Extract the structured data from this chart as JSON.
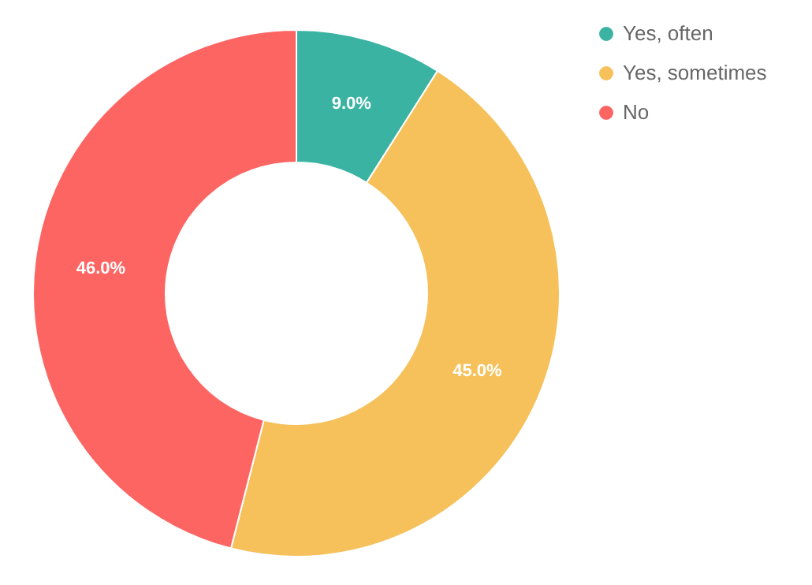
{
  "chart_data": {
    "type": "donut",
    "categories": [
      "Yes, often",
      "Yes, sometimes",
      "No"
    ],
    "values": [
      9,
      45,
      46
    ],
    "colors": [
      "#3bb3a3",
      "#f6c15b",
      "#fd6563"
    ],
    "value_labels": [
      "9.0%",
      "45.0%",
      "46.0%"
    ],
    "legend": "top right"
  }
}
